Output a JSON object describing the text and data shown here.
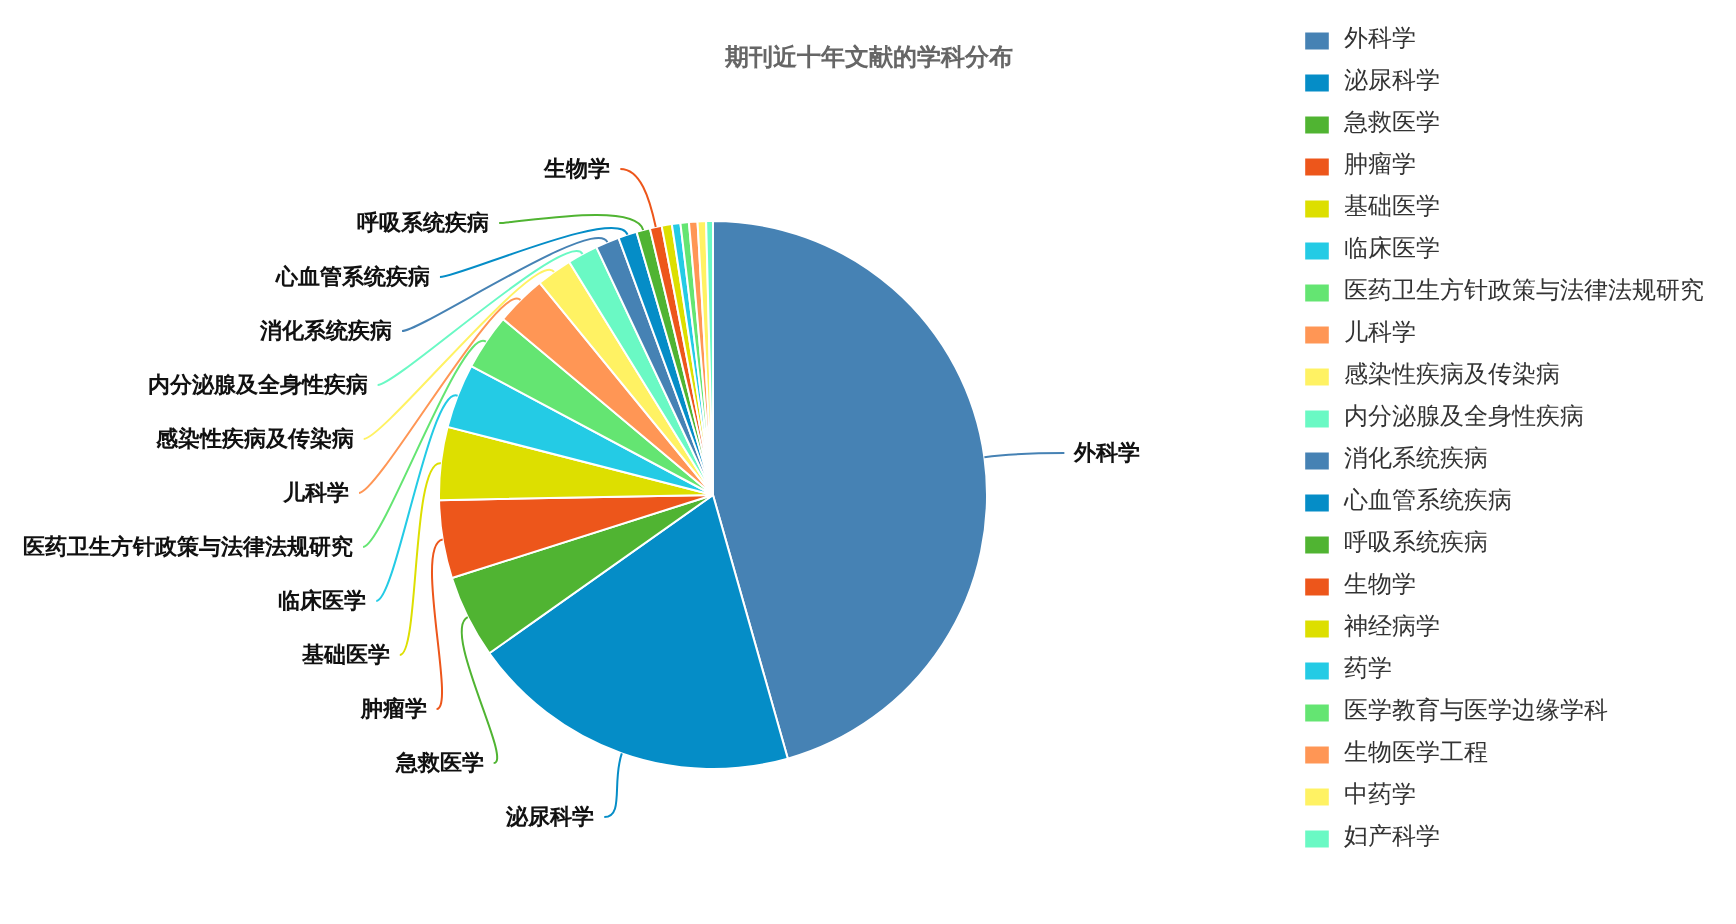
{
  "chart_data": {
    "type": "pie",
    "title": "期刊近十年文献的学科分布",
    "categories": [
      "外科学",
      "泌尿科学",
      "急救医学",
      "肿瘤学",
      "基础医学",
      "临床医学",
      "医药卫生方针政策与法律法规研究",
      "儿科学",
      "感染性疾病及传染病",
      "内分泌腺及全身性疾病",
      "消化系统疾病",
      "心血管系统疾病",
      "呼吸系统疾病",
      "生物学",
      "神经病学",
      "药学",
      "医学教育与医学边缘学科",
      "生物医学工程",
      "中药学",
      "妇产科学"
    ],
    "values": [
      45.6,
      19.6,
      4.9,
      4.6,
      4.3,
      3.8,
      3.3,
      3.0,
      2.1,
      1.8,
      1.4,
      1.1,
      0.8,
      0.7,
      0.6,
      0.5,
      0.5,
      0.5,
      0.5,
      0.4
    ],
    "colors": [
      "#4682b4",
      "#058dc7",
      "#50b432",
      "#ed561b",
      "#dddf00",
      "#24cbe5",
      "#64e572",
      "#ff9655",
      "#fff263",
      "#6af9c4",
      "#4682b4",
      "#058dc7",
      "#50b432",
      "#ed561b",
      "#dddf00",
      "#24cbe5",
      "#64e572",
      "#ff9655",
      "#fff263",
      "#6af9c4"
    ],
    "legend": "right"
  }
}
